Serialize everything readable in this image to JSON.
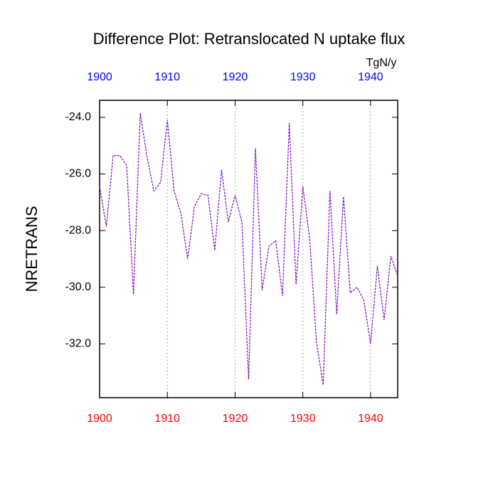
{
  "chart_data": {
    "type": "line",
    "title": "Difference Plot: Retranslocated N uptake flux",
    "y_label": "NRETRANS",
    "units": "TgN/y",
    "x": [
      1900,
      1901,
      1902,
      1903,
      1904,
      1905,
      1906,
      1907,
      1908,
      1909,
      1910,
      1911,
      1912,
      1913,
      1914,
      1915,
      1916,
      1917,
      1918,
      1919,
      1920,
      1921,
      1922,
      1923,
      1924,
      1925,
      1926,
      1927,
      1928,
      1929,
      1930,
      1931,
      1932,
      1933,
      1934,
      1935,
      1936,
      1937,
      1938,
      1939,
      1940,
      1941,
      1942,
      1943,
      1944
    ],
    "series": [
      {
        "color": "#7a00c4",
        "values": [
          -26.45,
          -27.85,
          -25.35,
          -25.35,
          -25.7,
          -30.25,
          -23.85,
          -25.4,
          -26.6,
          -26.3,
          -24.1,
          -26.6,
          -27.4,
          -29.0,
          -27.15,
          -26.7,
          -26.75,
          -28.7,
          -25.85,
          -27.7,
          -26.75,
          -27.7,
          -33.25,
          -25.1,
          -30.1,
          -28.55,
          -28.35,
          -30.3,
          -24.2,
          -29.9,
          -26.45,
          -28.25,
          -31.9,
          -33.45,
          -26.6,
          -30.95,
          -26.8,
          -30.2,
          -30.0,
          -30.45,
          -32.0,
          -29.25,
          -31.15,
          -28.9,
          -29.6
        ]
      }
    ],
    "xlim": [
      1900,
      1944
    ],
    "ylim": [
      -33.9,
      -23.4
    ],
    "xticks": [
      1900,
      1910,
      1920,
      1930,
      1940
    ],
    "yticks": [
      {
        "value": -24,
        "label": "-24.0"
      },
      {
        "value": -26,
        "label": "-26.0"
      },
      {
        "value": -28,
        "label": "-28.0"
      },
      {
        "value": -30,
        "label": "-30.0"
      },
      {
        "value": -32,
        "label": "-32.0"
      }
    ],
    "x_grid": true,
    "bottom_tick_color": "#ff0000",
    "top_tick_color": "#0000ff"
  }
}
